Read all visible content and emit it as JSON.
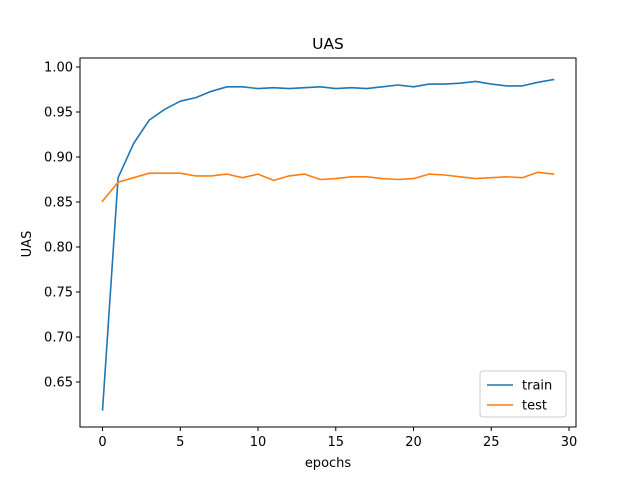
{
  "chart_data": {
    "type": "line",
    "title": "UAS",
    "xlabel": "epochs",
    "ylabel": "UAS",
    "xlim": [
      -1.45,
      30.45
    ],
    "ylim": [
      0.6,
      1.01
    ],
    "xticks": [
      0,
      5,
      10,
      15,
      20,
      25,
      30
    ],
    "yticks": [
      0.65,
      0.7,
      0.75,
      0.8,
      0.85,
      0.9,
      0.95,
      1.0
    ],
    "x": [
      0,
      1,
      2,
      3,
      4,
      5,
      6,
      7,
      8,
      9,
      10,
      11,
      12,
      13,
      14,
      15,
      16,
      17,
      18,
      19,
      20,
      21,
      22,
      23,
      24,
      25,
      26,
      27,
      28,
      29
    ],
    "series": [
      {
        "name": "train",
        "color": "#1f77b4",
        "values": [
          0.619,
          0.877,
          0.915,
          0.941,
          0.953,
          0.962,
          0.966,
          0.973,
          0.978,
          0.978,
          0.976,
          0.977,
          0.976,
          0.977,
          0.978,
          0.976,
          0.977,
          0.976,
          0.978,
          0.98,
          0.978,
          0.981,
          0.981,
          0.982,
          0.984,
          0.981,
          0.979,
          0.979,
          0.983,
          0.986
        ]
      },
      {
        "name": "test",
        "color": "#ff7f0e",
        "values": [
          0.851,
          0.872,
          0.877,
          0.882,
          0.882,
          0.882,
          0.879,
          0.879,
          0.881,
          0.877,
          0.881,
          0.874,
          0.879,
          0.881,
          0.875,
          0.876,
          0.878,
          0.878,
          0.876,
          0.875,
          0.876,
          0.881,
          0.88,
          0.878,
          0.876,
          0.877,
          0.878,
          0.877,
          0.883,
          0.881
        ]
      }
    ],
    "legend_position": "bottom-right",
    "grid": false
  }
}
